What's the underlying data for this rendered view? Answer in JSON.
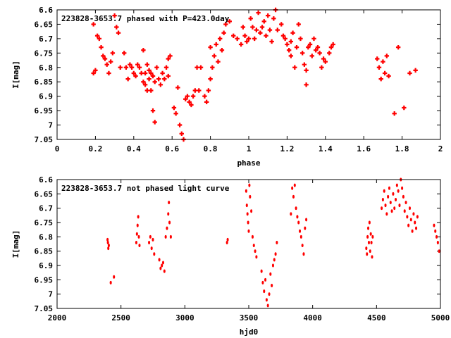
{
  "chart_data": [
    {
      "type": "scatter",
      "title": "223828-3653.7 phased with P=423.0day",
      "xlabel": "phase",
      "ylabel": "I[mag]",
      "xlim": [
        0,
        2
      ],
      "ylim": [
        7.05,
        6.6
      ],
      "y_inverted": true,
      "grid": false,
      "xticks": [
        "0",
        "0.2",
        "0.4",
        "0.6",
        "0.8",
        "1",
        "1.2",
        "1.4",
        "1.6",
        "1.8",
        "2"
      ],
      "yticks": [
        "6.6",
        "6.65",
        "6.7",
        "6.75",
        "6.8",
        "6.85",
        "6.9",
        "6.95",
        "7",
        "7.05"
      ],
      "marker_color": "#ff0000",
      "series": [
        {
          "points": [
            [
              0.19,
              6.65
            ],
            [
              0.19,
              6.82
            ],
            [
              0.2,
              6.81
            ],
            [
              0.21,
              6.69
            ],
            [
              0.22,
              6.7
            ],
            [
              0.23,
              6.73
            ],
            [
              0.24,
              6.76
            ],
            [
              0.25,
              6.77
            ],
            [
              0.26,
              6.79
            ],
            [
              0.27,
              6.82
            ],
            [
              0.28,
              6.78
            ],
            [
              0.29,
              6.75
            ],
            [
              0.3,
              6.62
            ],
            [
              0.31,
              6.66
            ],
            [
              0.32,
              6.68
            ],
            [
              0.33,
              6.8
            ],
            [
              0.35,
              6.75
            ],
            [
              0.36,
              6.8
            ],
            [
              0.37,
              6.84
            ],
            [
              0.38,
              6.79
            ],
            [
              0.39,
              6.8
            ],
            [
              0.4,
              6.82
            ],
            [
              0.41,
              6.83
            ],
            [
              0.42,
              6.79
            ],
            [
              0.43,
              6.8
            ],
            [
              0.44,
              6.82
            ],
            [
              0.45,
              6.74
            ],
            [
              0.45,
              6.85
            ],
            [
              0.46,
              6.86
            ],
            [
              0.46,
              6.82
            ],
            [
              0.47,
              6.79
            ],
            [
              0.47,
              6.88
            ],
            [
              0.48,
              6.81
            ],
            [
              0.48,
              6.84
            ],
            [
              0.49,
              6.82
            ],
            [
              0.49,
              6.88
            ],
            [
              0.5,
              6.83
            ],
            [
              0.5,
              6.95
            ],
            [
              0.51,
              6.85
            ],
            [
              0.51,
              6.99
            ],
            [
              0.52,
              6.8
            ],
            [
              0.53,
              6.84
            ],
            [
              0.54,
              6.86
            ],
            [
              0.55,
              6.82
            ],
            [
              0.56,
              6.84
            ],
            [
              0.57,
              6.8
            ],
            [
              0.58,
              6.77
            ],
            [
              0.58,
              6.83
            ],
            [
              0.59,
              6.76
            ],
            [
              0.61,
              6.94
            ],
            [
              0.62,
              6.96
            ],
            [
              0.63,
              6.87
            ],
            [
              0.64,
              7.0
            ],
            [
              0.65,
              7.03
            ],
            [
              0.66,
              7.05
            ],
            [
              0.67,
              6.91
            ],
            [
              0.68,
              6.9
            ],
            [
              0.69,
              6.92
            ],
            [
              0.7,
              6.93
            ],
            [
              0.71,
              6.9
            ],
            [
              0.72,
              6.88
            ],
            [
              0.73,
              6.8
            ],
            [
              0.74,
              6.88
            ],
            [
              0.75,
              6.8
            ],
            [
              0.77,
              6.9
            ],
            [
              0.78,
              6.92
            ],
            [
              0.79,
              6.88
            ],
            [
              0.8,
              6.84
            ],
            [
              0.8,
              6.73
            ],
            [
              0.81,
              6.8
            ],
            [
              0.82,
              6.76
            ],
            [
              0.83,
              6.72
            ],
            [
              0.84,
              6.78
            ],
            [
              0.85,
              6.7
            ],
            [
              0.86,
              6.74
            ],
            [
              0.87,
              6.68
            ],
            [
              0.88,
              6.65
            ],
            [
              0.9,
              6.64
            ],
            [
              0.92,
              6.69
            ],
            [
              0.94,
              6.7
            ],
            [
              0.96,
              6.72
            ],
            [
              0.97,
              6.66
            ],
            [
              0.98,
              6.69
            ],
            [
              0.99,
              6.71
            ],
            [
              1.0,
              6.7
            ],
            [
              1.01,
              6.63
            ],
            [
              1.02,
              6.66
            ],
            [
              1.03,
              6.7
            ],
            [
              1.04,
              6.67
            ],
            [
              1.05,
              6.61
            ],
            [
              1.06,
              6.68
            ],
            [
              1.07,
              6.66
            ],
            [
              1.08,
              6.64
            ],
            [
              1.09,
              6.69
            ],
            [
              1.1,
              6.62
            ],
            [
              1.11,
              6.67
            ],
            [
              1.12,
              6.71
            ],
            [
              1.13,
              6.63
            ],
            [
              1.14,
              6.6
            ],
            [
              1.15,
              6.67
            ],
            [
              1.17,
              6.65
            ],
            [
              1.18,
              6.69
            ],
            [
              1.19,
              6.7
            ],
            [
              1.2,
              6.72
            ],
            [
              1.21,
              6.74
            ],
            [
              1.22,
              6.76
            ],
            [
              1.22,
              6.71
            ],
            [
              1.23,
              6.68
            ],
            [
              1.24,
              6.8
            ],
            [
              1.25,
              6.73
            ],
            [
              1.26,
              6.65
            ],
            [
              1.27,
              6.7
            ],
            [
              1.28,
              6.75
            ],
            [
              1.29,
              6.79
            ],
            [
              1.3,
              6.81
            ],
            [
              1.3,
              6.86
            ],
            [
              1.31,
              6.73
            ],
            [
              1.32,
              6.72
            ],
            [
              1.33,
              6.76
            ],
            [
              1.34,
              6.7
            ],
            [
              1.35,
              6.74
            ],
            [
              1.36,
              6.73
            ],
            [
              1.37,
              6.75
            ],
            [
              1.38,
              6.8
            ],
            [
              1.39,
              6.77
            ],
            [
              1.4,
              6.78
            ],
            [
              1.42,
              6.75
            ],
            [
              1.43,
              6.73
            ],
            [
              1.44,
              6.72
            ],
            [
              1.67,
              6.77
            ],
            [
              1.68,
              6.8
            ],
            [
              1.69,
              6.84
            ],
            [
              1.7,
              6.78
            ],
            [
              1.71,
              6.82
            ],
            [
              1.72,
              6.76
            ],
            [
              1.73,
              6.83
            ],
            [
              1.76,
              6.96
            ],
            [
              1.78,
              6.73
            ],
            [
              1.81,
              6.94
            ],
            [
              1.84,
              6.82
            ],
            [
              1.87,
              6.81
            ]
          ]
        }
      ]
    },
    {
      "type": "scatter",
      "title": "223828-3653.7 not phased light curve",
      "xlabel": "hjd0",
      "ylabel": "I[mag]",
      "xlim": [
        2000,
        5000
      ],
      "ylim": [
        7.05,
        6.6
      ],
      "y_inverted": true,
      "grid": false,
      "xticks": [
        "2000",
        "2500",
        "3000",
        "3500",
        "4000",
        "4500",
        "5000"
      ],
      "yticks": [
        "6.6",
        "6.65",
        "6.7",
        "6.75",
        "6.8",
        "6.85",
        "6.9",
        "6.95",
        "7",
        "7.05"
      ],
      "marker_color": "#ff0000",
      "series": [
        {
          "points": [
            [
              2395,
              6.81
            ],
            [
              2398,
              6.82
            ],
            [
              2401,
              6.84
            ],
            [
              2405,
              6.83
            ],
            [
              2420,
              6.96
            ],
            [
              2445,
              6.94
            ],
            [
              2620,
              6.82
            ],
            [
              2625,
              6.79
            ],
            [
              2630,
              6.76
            ],
            [
              2635,
              6.73
            ],
            [
              2640,
              6.8
            ],
            [
              2645,
              6.83
            ],
            [
              2720,
              6.82
            ],
            [
              2730,
              6.8
            ],
            [
              2740,
              6.84
            ],
            [
              2750,
              6.81
            ],
            [
              2760,
              6.86
            ],
            [
              2800,
              6.88
            ],
            [
              2810,
              6.91
            ],
            [
              2820,
              6.9
            ],
            [
              2830,
              6.89
            ],
            [
              2840,
              6.92
            ],
            [
              2850,
              6.8
            ],
            [
              2860,
              6.77
            ],
            [
              2870,
              6.72
            ],
            [
              2875,
              6.68
            ],
            [
              2880,
              6.75
            ],
            [
              2890,
              6.8
            ],
            [
              3330,
              6.82
            ],
            [
              3335,
              6.81
            ],
            [
              3480,
              6.64
            ],
            [
              3485,
              6.69
            ],
            [
              3490,
              6.72
            ],
            [
              3495,
              6.75
            ],
            [
              3500,
              6.78
            ],
            [
              3505,
              6.62
            ],
            [
              3510,
              6.66
            ],
            [
              3520,
              6.71
            ],
            [
              3530,
              6.8
            ],
            [
              3540,
              6.83
            ],
            [
              3550,
              6.85
            ],
            [
              3560,
              6.87
            ],
            [
              3600,
              6.92
            ],
            [
              3610,
              6.96
            ],
            [
              3620,
              6.99
            ],
            [
              3630,
              6.95
            ],
            [
              3640,
              7.02
            ],
            [
              3650,
              7.04
            ],
            [
              3660,
              7.0
            ],
            [
              3670,
              6.93
            ],
            [
              3680,
              6.97
            ],
            [
              3690,
              6.9
            ],
            [
              3700,
              6.88
            ],
            [
              3710,
              6.86
            ],
            [
              3720,
              6.82
            ],
            [
              3830,
              6.72
            ],
            [
              3840,
              6.63
            ],
            [
              3850,
              6.66
            ],
            [
              3860,
              6.62
            ],
            [
              3870,
              6.7
            ],
            [
              3880,
              6.73
            ],
            [
              3890,
              6.75
            ],
            [
              3900,
              6.78
            ],
            [
              3910,
              6.8
            ],
            [
              3920,
              6.83
            ],
            [
              3930,
              6.86
            ],
            [
              3940,
              6.77
            ],
            [
              3950,
              6.74
            ],
            [
              4420,
              6.84
            ],
            [
              4425,
              6.86
            ],
            [
              4430,
              6.8
            ],
            [
              4435,
              6.77
            ],
            [
              4440,
              6.82
            ],
            [
              4445,
              6.75
            ],
            [
              4450,
              6.85
            ],
            [
              4455,
              6.79
            ],
            [
              4460,
              6.82
            ],
            [
              4465,
              6.87
            ],
            [
              4470,
              6.8
            ],
            [
              4540,
              6.7
            ],
            [
              4550,
              6.67
            ],
            [
              4560,
              6.64
            ],
            [
              4570,
              6.69
            ],
            [
              4580,
              6.72
            ],
            [
              4590,
              6.66
            ],
            [
              4600,
              6.63
            ],
            [
              4610,
              6.68
            ],
            [
              4620,
              6.71
            ],
            [
              4630,
              6.65
            ],
            [
              4640,
              6.7
            ],
            [
              4650,
              6.67
            ],
            [
              4660,
              6.62
            ],
            [
              4670,
              6.64
            ],
            [
              4680,
              6.69
            ],
            [
              4690,
              6.6
            ],
            [
              4700,
              6.63
            ],
            [
              4710,
              6.66
            ],
            [
              4720,
              6.71
            ],
            [
              4730,
              6.68
            ],
            [
              4740,
              6.73
            ],
            [
              4750,
              6.76
            ],
            [
              4760,
              6.7
            ],
            [
              4770,
              6.74
            ],
            [
              4780,
              6.78
            ],
            [
              4790,
              6.72
            ],
            [
              4800,
              6.75
            ],
            [
              4810,
              6.77
            ],
            [
              4820,
              6.73
            ],
            [
              4950,
              6.76
            ],
            [
              4960,
              6.78
            ],
            [
              4970,
              6.8
            ],
            [
              4980,
              6.82
            ],
            [
              4990,
              6.85
            ]
          ]
        }
      ]
    }
  ]
}
